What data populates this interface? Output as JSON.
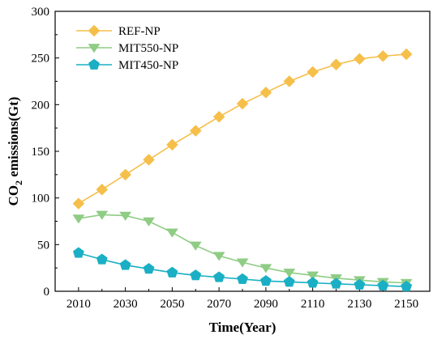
{
  "chart_data": {
    "type": "line",
    "xlabel": "Time(Year)",
    "ylabel_main": "CO",
    "ylabel_sub": "2",
    "ylabel_rest": " emissions(Gt)",
    "xlim": [
      2000,
      2160
    ],
    "ylim": [
      0,
      300
    ],
    "x_ticks": [
      2010,
      2030,
      2050,
      2070,
      2090,
      2110,
      2130,
      2150
    ],
    "y_ticks": [
      0,
      50,
      100,
      150,
      200,
      250,
      300
    ],
    "legend_position": "top-left",
    "grid": false,
    "x": [
      2010,
      2020,
      2030,
      2040,
      2050,
      2060,
      2070,
      2080,
      2090,
      2100,
      2110,
      2120,
      2130,
      2140,
      2150
    ],
    "series": [
      {
        "name": "REF-NP",
        "color": "#f5bf4a",
        "marker": "diamond",
        "values": [
          94,
          109,
          125,
          141,
          157,
          172,
          187,
          201,
          213,
          225,
          235,
          243,
          249,
          252,
          254
        ]
      },
      {
        "name": "MIT550-NP",
        "color": "#8fcc84",
        "marker": "triangle-down",
        "values": [
          78,
          82,
          81,
          75,
          63,
          49,
          38,
          31,
          25,
          20,
          17,
          14,
          12,
          10,
          9
        ]
      },
      {
        "name": "MIT450-NP",
        "color": "#1aafc4",
        "marker": "pentagon",
        "values": [
          41,
          34,
          28,
          24,
          20,
          17,
          15,
          13,
          11,
          10,
          9,
          8,
          7,
          6,
          5
        ]
      }
    ]
  }
}
